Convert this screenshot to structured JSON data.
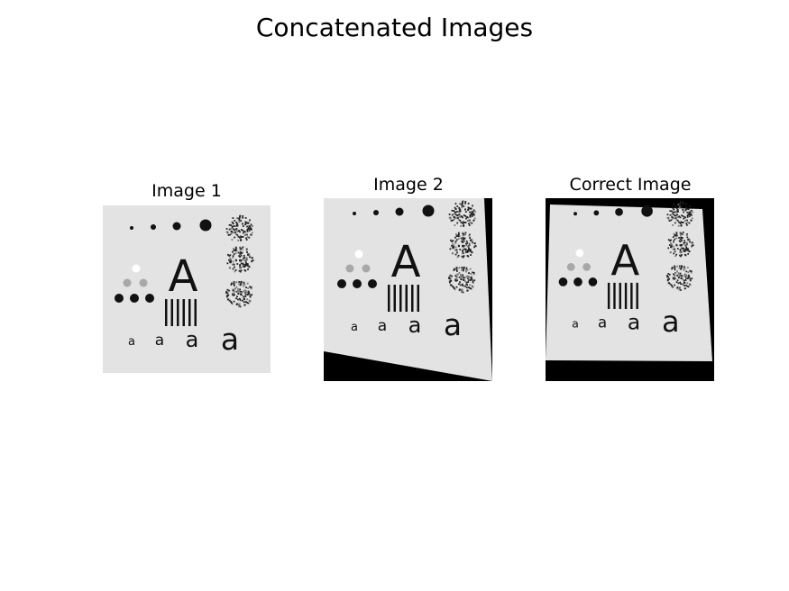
{
  "figure": {
    "title": "Concatenated Images"
  },
  "panels": [
    {
      "title": "Image 1"
    },
    {
      "title": "Image 2"
    },
    {
      "title": "Correct Image"
    }
  ],
  "test_chart": {
    "big_letter": "A",
    "small_letter": "a"
  }
}
